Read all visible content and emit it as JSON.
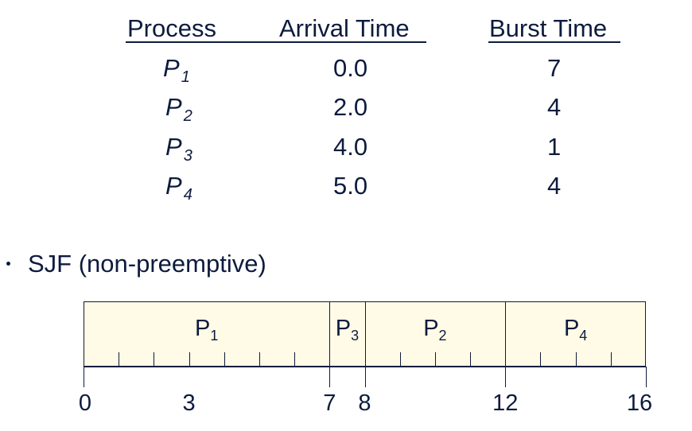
{
  "table": {
    "headers": {
      "process": "Process",
      "arrival": "Arrival Time",
      "burst": "Burst Time"
    },
    "rows": [
      {
        "process": "P",
        "sub": "1",
        "arrival": "0.0",
        "burst": "7"
      },
      {
        "process": "P",
        "sub": "2",
        "arrival": "2.0",
        "burst": "4"
      },
      {
        "process": "P",
        "sub": "3",
        "arrival": "4.0",
        "burst": "1"
      },
      {
        "process": "P",
        "sub": "4",
        "arrival": "5.0",
        "burst": "4"
      }
    ]
  },
  "bullet": {
    "text": "SJF (non-preemptive)"
  },
  "gantt": {
    "start": 0,
    "end": 16,
    "segments": [
      {
        "label": "P",
        "sub": "1",
        "start": 0,
        "end": 7
      },
      {
        "label": "P",
        "sub": "3",
        "start": 7,
        "end": 8
      },
      {
        "label": "P",
        "sub": "2",
        "start": 8,
        "end": 12
      },
      {
        "label": "P",
        "sub": "4",
        "start": 12,
        "end": 16
      }
    ],
    "axis_labels": [
      "0",
      "3",
      "7",
      "8",
      "12",
      "16"
    ]
  }
}
